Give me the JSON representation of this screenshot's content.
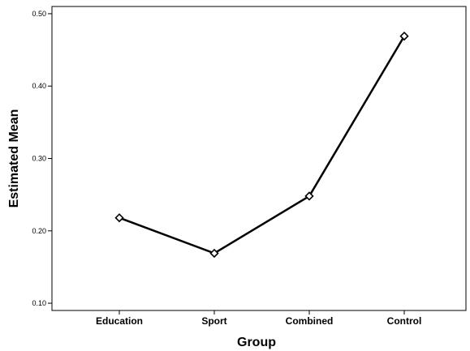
{
  "chart_data": {
    "type": "line",
    "title": "",
    "xlabel": "Group",
    "ylabel": "Estimated Mean",
    "categories": [
      "Education",
      "Sport",
      "Combined",
      "Control"
    ],
    "series": [
      {
        "values": [
          0.218,
          0.169,
          0.248,
          0.469
        ],
        "marker": "diamond-open",
        "color": "#000000"
      }
    ],
    "ylim": [
      0.09,
      0.51
    ],
    "yticks": [
      0.1,
      0.2,
      0.3,
      0.4,
      0.5
    ],
    "ytick_labels": [
      "0.10",
      "0.20",
      "0.30",
      "0.40",
      "0.50"
    ],
    "grid": false,
    "legend": "none"
  }
}
